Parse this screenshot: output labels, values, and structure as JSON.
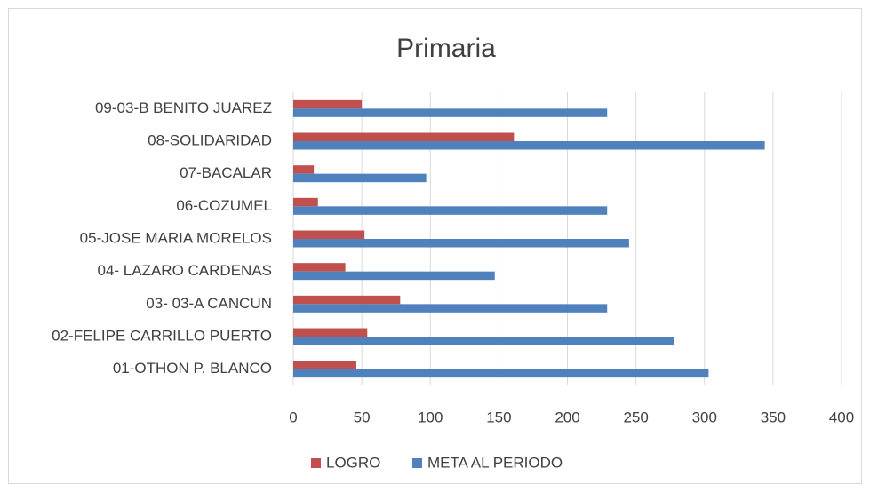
{
  "chart_data": {
    "type": "barh",
    "title": "Primaria",
    "categories": [
      "01-OTHON P. BLANCO",
      "02-FELIPE CARRILLO PUERTO",
      "03- 03-A CANCUN",
      "04- LAZARO CARDENAS",
      "05-JOSE MARIA MORELOS",
      "06-COZUMEL",
      "07-BACALAR",
      "08-SOLIDARIDAD",
      "09-03-B BENITO JUAREZ"
    ],
    "series": [
      {
        "name": "LOGRO",
        "color": "#c0504d",
        "values": [
          46,
          54,
          78,
          38,
          52,
          18,
          15,
          161,
          50
        ]
      },
      {
        "name": "META AL PERIODO",
        "color": "#4f81bd",
        "values": [
          303,
          278,
          229,
          147,
          245,
          229,
          97,
          344,
          229
        ]
      }
    ],
    "xlim": [
      0,
      400
    ],
    "xticks": [
      0,
      50,
      100,
      150,
      200,
      250,
      300,
      350,
      400
    ],
    "grid": true,
    "legend": "bottom"
  }
}
